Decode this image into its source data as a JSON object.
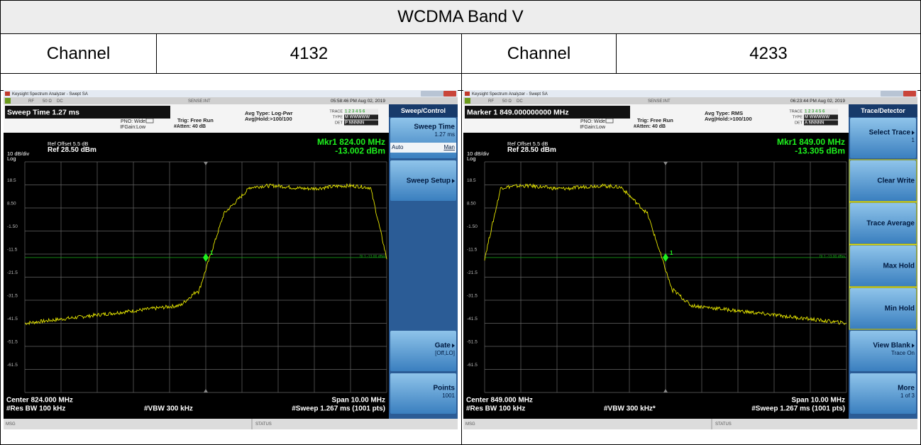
{
  "table": {
    "title": "WCDMA Band V",
    "channels": [
      {
        "label": "Channel",
        "value": "4132"
      },
      {
        "label": "Channel",
        "value": "4233"
      }
    ]
  },
  "analyzers": [
    {
      "window_title": "Keysight Spectrum Analyzer - Swept SA",
      "status": [
        "RF",
        "50 Ω",
        "DC"
      ],
      "sense": "SENSE:INT",
      "datetime": "05:58:46 PM Aug 02, 2019",
      "active": "Sweep Time 1.27 ms",
      "pno": "PNO: Wide",
      "ifgain": "IFGain:Low",
      "trig": "Trig: Free Run",
      "atten": "#Atten: 40 dB",
      "avg_type": "Avg Type: Log-Pwr",
      "avg_hold": "Avg|Hold:>100/100",
      "trace_rows": [
        [
          "TRACE",
          "1 2 3 4 5 6"
        ],
        [
          "TYPE",
          "M WWWWW"
        ],
        [
          "DET",
          "P NNNNN"
        ]
      ],
      "ref_offset": "Ref Offset 5.5 dB",
      "ref": "Ref 28.50 dBm",
      "scale": "10 dB/div",
      "scale_type": "Log",
      "marker_freq": "Mkr1 824.00 MHz",
      "marker_level": "-13.002 dBm",
      "y_labels": [
        "18.5",
        "8.50",
        "-1.50",
        "-11.5",
        "-21.5",
        "-31.5",
        "-41.5",
        "-51.5",
        "-61.5"
      ],
      "display_line": "DL1 -13.00 dBm",
      "marker_id": "1",
      "center": "Center 824.000 MHz",
      "rbw": "#Res BW 100 kHz",
      "vbw": "#VBW 300 kHz",
      "span": "Span 10.00 MHz",
      "sweep": "#Sweep  1.267 ms (1001 pts)",
      "msg": "MSG",
      "status_label": "STATUS",
      "menu_title": "Sweep/Control",
      "softkeys": [
        {
          "label": "Sweep Time",
          "sub": "1.27 ms",
          "options": [
            "Auto",
            "Man"
          ]
        },
        {
          "label": "Sweep Setup",
          "arrow": true
        },
        null,
        null,
        null,
        {
          "label": "Gate",
          "sub": "[Off,LO]",
          "arrow": true
        },
        {
          "label": "Points",
          "sub": "1001"
        }
      ]
    },
    {
      "window_title": "Keysight Spectrum Analyzer - Swept SA",
      "status": [
        "RF",
        "50 Ω",
        "DC"
      ],
      "sense": "SENSE:INT",
      "datetime": "06:23:44 PM Aug 02, 2019",
      "active": "Marker 1 849.000000000 MHz",
      "pno": "PNO: Wide",
      "ifgain": "IFGain:Low",
      "trig": "Trig: Free Run",
      "atten": "#Atten: 40 dB",
      "avg_type": "Avg Type: RMS",
      "avg_hold": "Avg|Hold:>100/100",
      "trace_rows": [
        [
          "TRACE",
          "1 2 3 4 5 6"
        ],
        [
          "TYPE",
          "M WWWWW"
        ],
        [
          "DET",
          "A NNNNN"
        ]
      ],
      "ref_offset": "Ref Offset 5.5 dB",
      "ref": "Ref 28.50 dBm",
      "scale": "10 dB/div",
      "scale_type": "Log",
      "marker_freq": "Mkr1 849.00 MHz",
      "marker_level": "-13.305 dBm",
      "y_labels": [
        "18.5",
        "8.50",
        "-1.50",
        "-11.5",
        "-21.5",
        "-31.5",
        "-41.5",
        "-51.5",
        "-61.5"
      ],
      "display_line": "DL1 -13.00 dBm",
      "marker_id": "1",
      "center": "Center 849.000 MHz",
      "rbw": "#Res BW 100 kHz",
      "vbw": "#VBW 300 kHz*",
      "span": "Span 10.00 MHz",
      "sweep": "#Sweep  1.267 ms (1001 pts)",
      "msg": "MSG",
      "status_label": "STATUS",
      "menu_title": "Trace/Detector",
      "softkeys": [
        {
          "label": "Select Trace",
          "sub": "1",
          "arrow": true
        },
        {
          "label": "Clear Write",
          "highlight": true
        },
        {
          "label": "Trace Average",
          "highlight": true
        },
        {
          "label": "Max Hold",
          "highlight": true
        },
        {
          "label": "Min Hold",
          "highlight": true
        },
        {
          "label": "View Blank",
          "sub": "Trace On",
          "arrow": true
        },
        {
          "label": "More",
          "sub": "1 of 3"
        }
      ]
    }
  ]
}
